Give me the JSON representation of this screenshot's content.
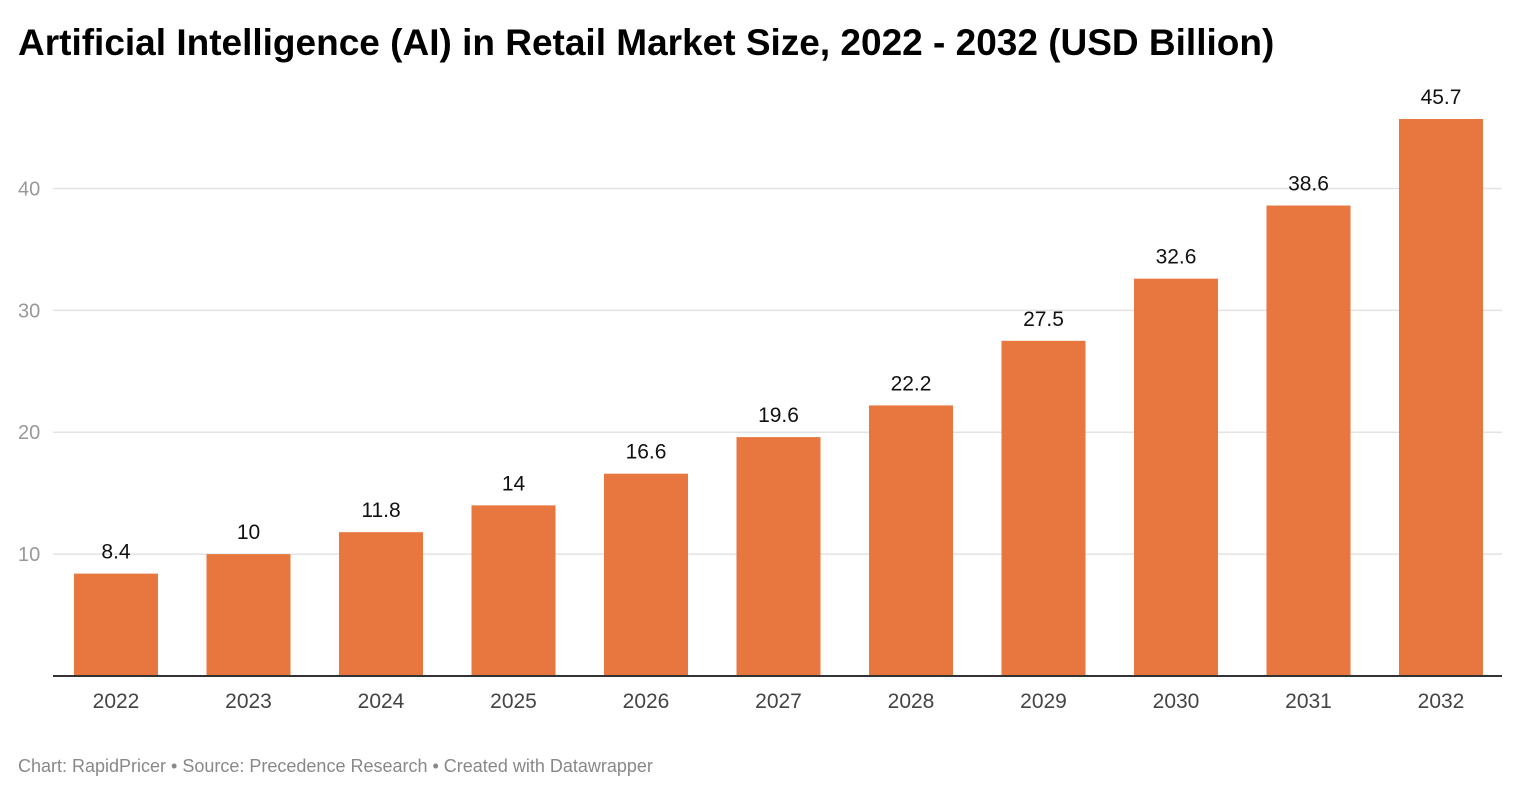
{
  "footer": "Chart: RapidPricer • Source: Precedence Research • Created with Datawrapper",
  "colors": {
    "bar": "#e8763f",
    "gridline": "#e3e3e3",
    "baseline": "#333333"
  },
  "chart_data": {
    "type": "bar",
    "title": "Artificial Intelligence (AI) in Retail Market Size, 2022 - 2032 (USD Billion)",
    "xlabel": "",
    "ylabel": "",
    "categories": [
      "2022",
      "2023",
      "2024",
      "2025",
      "2026",
      "2027",
      "2028",
      "2029",
      "2030",
      "2031",
      "2032"
    ],
    "values": [
      8.4,
      10,
      11.8,
      14,
      16.6,
      19.6,
      22.2,
      27.5,
      32.6,
      38.6,
      45.7
    ],
    "value_labels": [
      "8.4",
      "10",
      "11.8",
      "14",
      "16.6",
      "19.6",
      "22.2",
      "27.5",
      "32.6",
      "38.6",
      "45.7"
    ],
    "y_ticks": [
      10,
      20,
      30,
      40
    ],
    "ylim": [
      0,
      45.7
    ],
    "grid": true,
    "legend": "none"
  }
}
